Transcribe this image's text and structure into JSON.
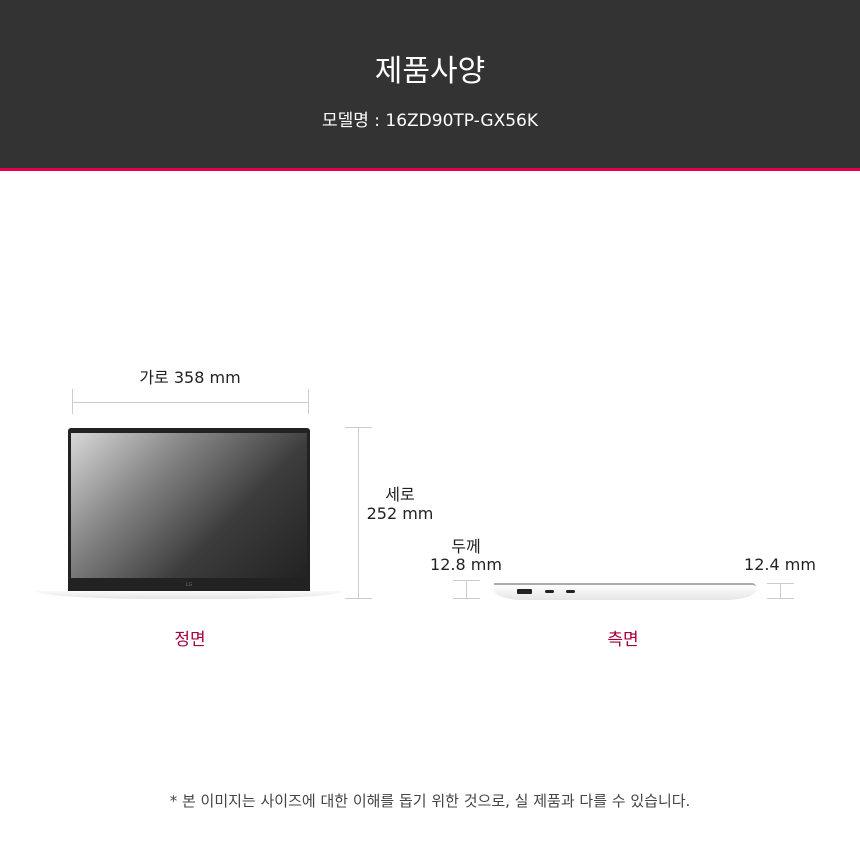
{
  "header": {
    "title": "제품사양",
    "model": "모델명 : 16ZD90TP-GX56K"
  },
  "front": {
    "width_label": "가로 358 mm",
    "height_label_1": "세로",
    "height_label_2": "252 mm",
    "caption": "정면",
    "logo": "LG"
  },
  "side": {
    "thickness_label_1": "두께",
    "thickness_label_2": "12.8 mm",
    "thin_label": "12.4 mm",
    "caption": "측면"
  },
  "colors": {
    "header_bg": "#333333",
    "accent": "#e2004b",
    "caption": "#a5003c"
  },
  "footnote": "* 본 이미지는 사이즈에 대한 이해를 돕기 위한 것으로, 실 제품과 다를 수 있습니다."
}
